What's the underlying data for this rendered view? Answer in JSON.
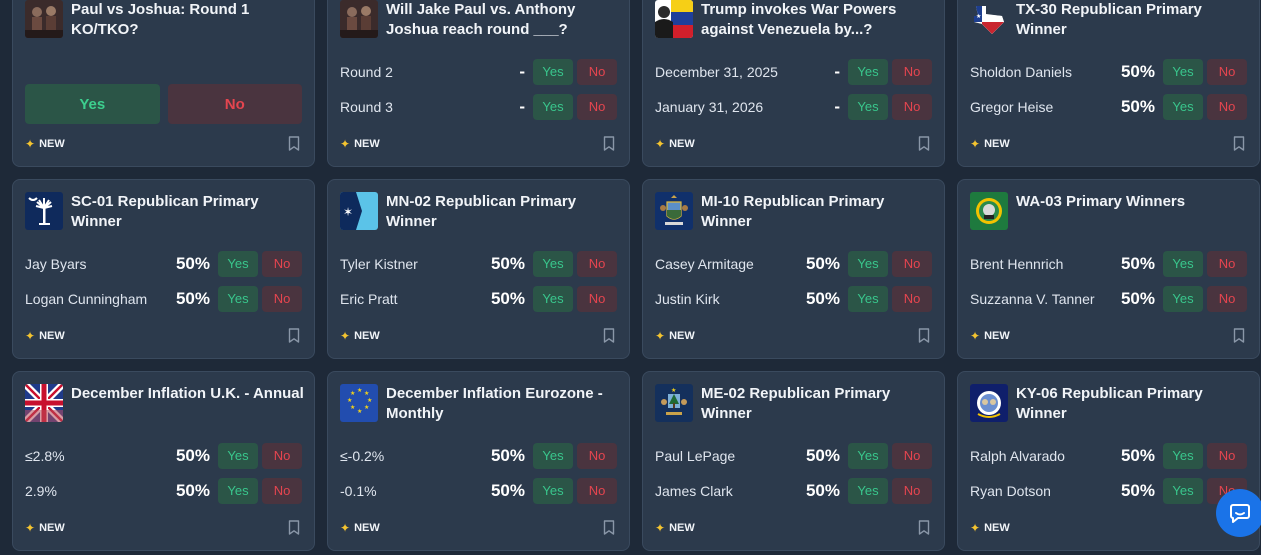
{
  "badge": {
    "new_label": "NEW"
  },
  "colors": {
    "page_bg": "#1e2938",
    "card_bg": "#2c3a4c",
    "yes_fg": "#39c68c",
    "no_fg": "#e5454f",
    "new_star": "#f4c430"
  },
  "cards": [
    {
      "title": "Paul vs Joshua: Round 1 KO/TKO?",
      "icon": "boxing-photo-icon",
      "big": {
        "yes": "Yes",
        "no": "No"
      }
    },
    {
      "title": "Will Jake Paul vs. Anthony Joshua reach round ___?",
      "icon": "boxing-photo-icon",
      "rows": [
        {
          "label": "Round 2",
          "pct": "-",
          "yes": "Yes",
          "no": "No"
        },
        {
          "label": "Round 3",
          "pct": "-",
          "yes": "Yes",
          "no": "No"
        }
      ]
    },
    {
      "title": "Trump invokes War Powers against Venezuela by...?",
      "icon": "trump-venezuela-flag-icon",
      "rows": [
        {
          "label": "December 31, 2025",
          "pct": "-",
          "yes": "Yes",
          "no": "No"
        },
        {
          "label": "January 31, 2026",
          "pct": "-",
          "yes": "Yes",
          "no": "No"
        }
      ]
    },
    {
      "title": "TX-30 Republican Primary Winner",
      "icon": "texas-map-icon",
      "rows": [
        {
          "label": "Sholdon Daniels",
          "pct": "50%",
          "yes": "Yes",
          "no": "No"
        },
        {
          "label": "Gregor Heise",
          "pct": "50%",
          "yes": "Yes",
          "no": "No"
        }
      ]
    },
    {
      "title": "SC-01 Republican Primary Winner",
      "icon": "south-carolina-flag-icon",
      "rows": [
        {
          "label": "Jay Byars",
          "pct": "50%",
          "yes": "Yes",
          "no": "No"
        },
        {
          "label": "Logan Cunningham",
          "pct": "50%",
          "yes": "Yes",
          "no": "No"
        }
      ]
    },
    {
      "title": "MN-02 Republican Primary Winner",
      "icon": "minnesota-flag-icon",
      "rows": [
        {
          "label": "Tyler Kistner",
          "pct": "50%",
          "yes": "Yes",
          "no": "No"
        },
        {
          "label": "Eric Pratt",
          "pct": "50%",
          "yes": "Yes",
          "no": "No"
        }
      ]
    },
    {
      "title": "MI-10 Republican Primary Winner",
      "icon": "michigan-flag-icon",
      "rows": [
        {
          "label": "Casey Armitage",
          "pct": "50%",
          "yes": "Yes",
          "no": "No"
        },
        {
          "label": "Justin Kirk",
          "pct": "50%",
          "yes": "Yes",
          "no": "No"
        }
      ]
    },
    {
      "title": "WA-03 Primary Winners",
      "icon": "washington-flag-icon",
      "rows": [
        {
          "label": "Brent Hennrich",
          "pct": "50%",
          "yes": "Yes",
          "no": "No"
        },
        {
          "label": "Suzzanna V. Tanner",
          "pct": "50%",
          "yes": "Yes",
          "no": "No"
        }
      ]
    },
    {
      "title": "December Inflation U.K. - Annual",
      "icon": "uk-flag-icon",
      "rows": [
        {
          "label": "≤2.8%",
          "pct": "50%",
          "yes": "Yes",
          "no": "No"
        },
        {
          "label": "2.9%",
          "pct": "50%",
          "yes": "Yes",
          "no": "No"
        }
      ]
    },
    {
      "title": "December Inflation Eurozone - Monthly",
      "icon": "eu-flag-icon",
      "rows": [
        {
          "label": "≤-0.2%",
          "pct": "50%",
          "yes": "Yes",
          "no": "No"
        },
        {
          "label": "-0.1%",
          "pct": "50%",
          "yes": "Yes",
          "no": "No"
        }
      ]
    },
    {
      "title": "ME-02 Republican Primary Winner",
      "icon": "maine-flag-icon",
      "rows": [
        {
          "label": "Paul LePage",
          "pct": "50%",
          "yes": "Yes",
          "no": "No"
        },
        {
          "label": "James Clark",
          "pct": "50%",
          "yes": "Yes",
          "no": "No"
        }
      ]
    },
    {
      "title": "KY-06 Republican Primary Winner",
      "icon": "kentucky-flag-icon",
      "rows": [
        {
          "label": "Ralph Alvarado",
          "pct": "50%",
          "yes": "Yes",
          "no": "No"
        },
        {
          "label": "Ryan Dotson",
          "pct": "50%",
          "yes": "Yes",
          "no": "No"
        }
      ]
    }
  ],
  "chat": {
    "icon": "chat-bubble-icon"
  }
}
